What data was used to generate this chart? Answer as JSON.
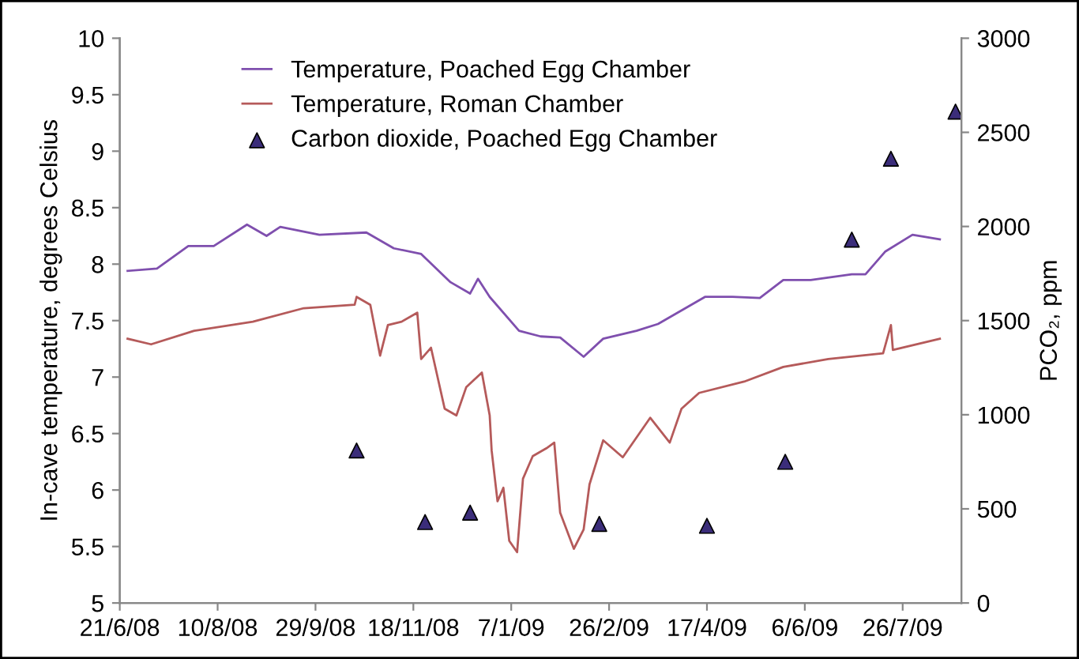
{
  "chart_data": {
    "type": "line",
    "ylabel": "In-cave temperature, degrees Celsius",
    "y2label": "PCO₂, ppm",
    "xlim": [
      "2008-06-21",
      "2009-08-25"
    ],
    "xticks": [
      {
        "value": "2008-06-21",
        "label": "21/6/08"
      },
      {
        "value": "2008-08-10",
        "label": "10/8/08"
      },
      {
        "value": "2008-09-29",
        "label": "29/9/08"
      },
      {
        "value": "2008-11-18",
        "label": "18/11/08"
      },
      {
        "value": "2009-01-07",
        "label": "7/1/09"
      },
      {
        "value": "2009-02-26",
        "label": "26/2/09"
      },
      {
        "value": "2009-04-17",
        "label": "17/4/09"
      },
      {
        "value": "2009-06-06",
        "label": "6/6/09"
      },
      {
        "value": "2009-07-26",
        "label": "26/7/09"
      }
    ],
    "ylim": [
      5,
      10
    ],
    "yticks": [
      5,
      {
        "value": 5.5,
        "label": "5.5"
      },
      6,
      {
        "value": 6.5,
        "label": "6.5"
      },
      7,
      {
        "value": 7.5,
        "label": "7.5"
      },
      8,
      {
        "value": 8.5,
        "label": "8.5"
      },
      9,
      {
        "value": 9.5,
        "label": "9.5"
      },
      10
    ],
    "y2lim": [
      0,
      3000
    ],
    "y2ticks": [
      0,
      500,
      1000,
      1500,
      2000,
      2500,
      3000
    ],
    "grid": false,
    "legend": "top left",
    "series": [
      {
        "name": "Temperature, Poached Egg Chamber",
        "color": "#7f4fae",
        "x": [
          "2008-06-25",
          "2008-07-10",
          "2008-07-26",
          "2008-08-08",
          "2008-08-25",
          "2008-09-04",
          "2008-09-11",
          "2008-10-01",
          "2008-10-25",
          "2008-11-08",
          "2008-11-22",
          "2008-12-07",
          "2008-12-17",
          "2008-12-21",
          "2008-12-27",
          "2009-01-11",
          "2009-01-22",
          "2009-02-01",
          "2009-02-13",
          "2009-02-23",
          "2009-03-12",
          "2009-03-23",
          "2009-04-16",
          "2009-04-30",
          "2009-05-14",
          "2009-05-26",
          "2009-06-09",
          "2009-06-30",
          "2009-07-07",
          "2009-07-17",
          "2009-07-31",
          "2009-08-14"
        ],
        "values": [
          7.94,
          7.96,
          8.16,
          8.16,
          8.35,
          8.25,
          8.33,
          8.26,
          8.28,
          8.14,
          8.09,
          7.84,
          7.74,
          7.87,
          7.71,
          7.41,
          7.36,
          7.35,
          7.18,
          7.34,
          7.41,
          7.47,
          7.71,
          7.71,
          7.7,
          7.86,
          7.86,
          7.91,
          7.91,
          8.11,
          8.26,
          8.22
        ]
      },
      {
        "name": "Temperature, Roman Chamber",
        "color": "#b55a5a",
        "x": [
          "2008-06-25",
          "2008-07-07",
          "2008-07-29",
          "2008-08-28",
          "2008-09-23",
          "2008-10-19",
          "2008-10-20",
          "2008-10-27",
          "2008-11-01",
          "2008-11-05",
          "2008-11-12",
          "2008-11-20",
          "2008-11-22",
          "2008-11-27",
          "2008-12-04",
          "2008-12-10",
          "2008-12-15",
          "2008-12-23",
          "2008-12-27",
          "2008-12-28",
          "2008-12-31",
          "2009-01-03",
          "2009-01-06",
          "2009-01-10",
          "2009-01-13",
          "2009-01-18",
          "2009-01-25",
          "2009-01-29",
          "2009-02-01",
          "2009-02-08",
          "2009-02-13",
          "2009-02-16",
          "2009-02-23",
          "2009-03-05",
          "2009-03-19",
          "2009-03-29",
          "2009-04-04",
          "2009-04-13",
          "2009-05-06",
          "2009-05-26",
          "2009-06-18",
          "2009-07-16",
          "2009-07-20",
          "2009-07-21",
          "2009-08-14"
        ],
        "values": [
          7.34,
          7.29,
          7.41,
          7.49,
          7.61,
          7.64,
          7.71,
          7.64,
          7.19,
          7.46,
          7.49,
          7.57,
          7.16,
          7.26,
          6.72,
          6.66,
          6.91,
          7.04,
          6.66,
          6.35,
          5.9,
          6.02,
          5.55,
          5.45,
          6.1,
          6.3,
          6.37,
          6.42,
          5.8,
          5.48,
          5.65,
          6.05,
          6.44,
          6.29,
          6.64,
          6.42,
          6.72,
          6.86,
          6.96,
          7.09,
          7.16,
          7.21,
          7.46,
          7.24,
          7.34
        ]
      },
      {
        "name": "Carbon dioxide, Poached Egg Chamber",
        "type": "scatter",
        "axis": "y2",
        "marker": "triangle",
        "color": "#3b2d7a",
        "x": [
          "2008-10-20",
          "2008-11-24",
          "2008-12-17",
          "2009-02-21",
          "2009-04-17",
          "2009-05-27",
          "2009-06-30",
          "2009-07-20",
          "2009-08-22"
        ],
        "values": [
          810,
          430,
          480,
          420,
          410,
          750,
          1930,
          2360,
          2610
        ]
      }
    ]
  }
}
